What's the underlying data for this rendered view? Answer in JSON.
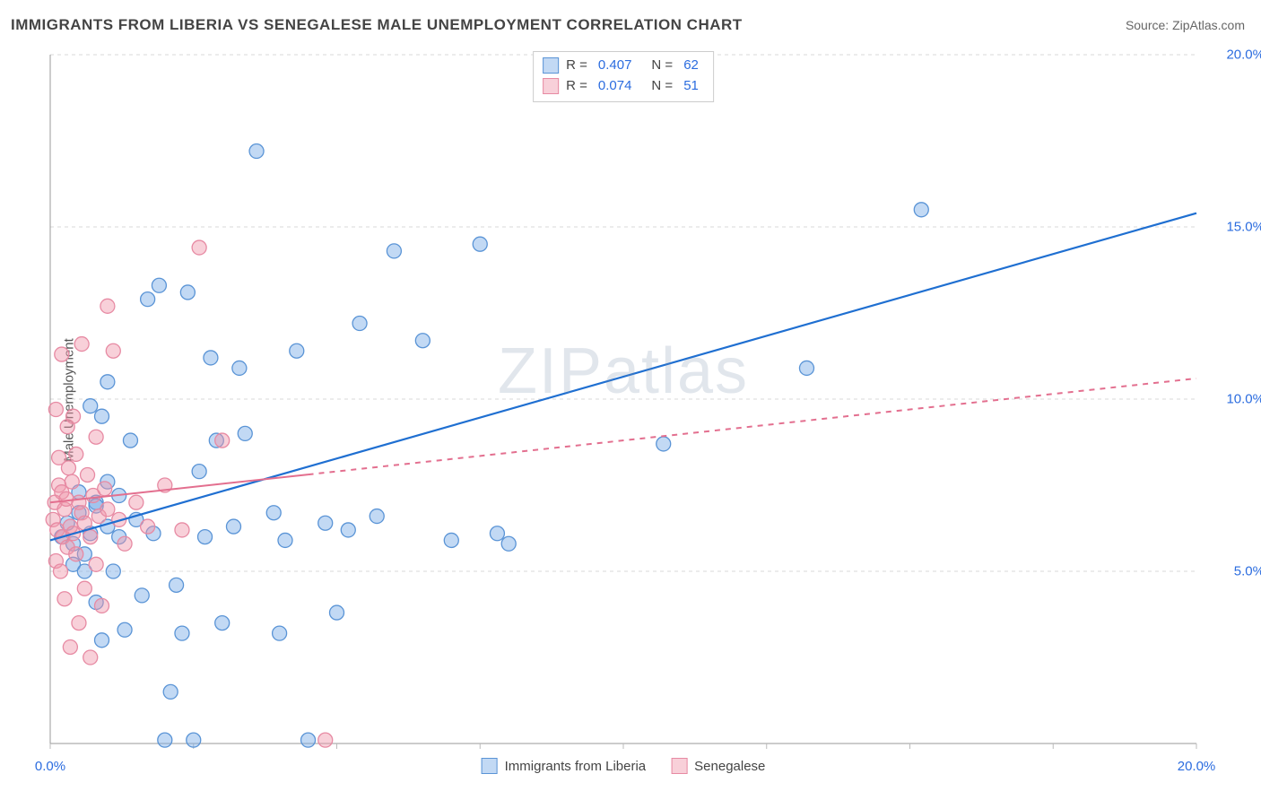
{
  "title": "IMMIGRANTS FROM LIBERIA VS SENEGALESE MALE UNEMPLOYMENT CORRELATION CHART",
  "source": "Source: ZipAtlas.com",
  "ylabel": "Male Unemployment",
  "watermark": "ZIPatlas",
  "chart": {
    "type": "scatter",
    "xlim": [
      0,
      20
    ],
    "ylim": [
      0,
      20
    ],
    "x_axis_label_low": "0.0%",
    "x_axis_label_high": "20.0%",
    "ytick_positions": [
      5,
      10,
      15,
      20
    ],
    "ytick_labels": [
      "5.0%",
      "10.0%",
      "15.0%",
      "20.0%"
    ],
    "xtick_positions": [
      0,
      2.5,
      5,
      7.5,
      10,
      12.5,
      15,
      17.5,
      20
    ],
    "grid_color": "#d9d9d9",
    "grid_dash": "4,4",
    "axis_color": "#999999",
    "tick_color": "#bbbbbb",
    "background_color": "#ffffff",
    "series": [
      {
        "name": "Immigrants from Liberia",
        "marker_color_fill": "rgba(120,170,230,0.45)",
        "marker_color_stroke": "#5a94d6",
        "marker_radius": 8,
        "trend_color": "#1f6fd1",
        "trend_width": 2.2,
        "trend_dash": "none",
        "trend_x_range": [
          0,
          20
        ],
        "trend_y_at_x0": 5.9,
        "trend_y_at_xmax": 15.4,
        "r": "0.407",
        "n": "62",
        "points": [
          [
            0.2,
            6.0
          ],
          [
            0.3,
            6.4
          ],
          [
            0.4,
            5.8
          ],
          [
            0.5,
            6.7
          ],
          [
            0.5,
            7.3
          ],
          [
            0.6,
            5.5
          ],
          [
            0.7,
            6.1
          ],
          [
            0.7,
            9.8
          ],
          [
            0.8,
            4.1
          ],
          [
            0.8,
            7.0
          ],
          [
            0.9,
            3.0
          ],
          [
            0.9,
            9.5
          ],
          [
            1.0,
            6.3
          ],
          [
            1.0,
            10.5
          ],
          [
            1.1,
            5.0
          ],
          [
            1.2,
            7.2
          ],
          [
            1.3,
            3.3
          ],
          [
            1.4,
            8.8
          ],
          [
            1.5,
            6.5
          ],
          [
            1.6,
            4.3
          ],
          [
            1.7,
            12.9
          ],
          [
            1.8,
            6.1
          ],
          [
            1.9,
            13.3
          ],
          [
            2.0,
            0.1
          ],
          [
            2.1,
            1.5
          ],
          [
            2.2,
            4.6
          ],
          [
            2.3,
            3.2
          ],
          [
            2.4,
            13.1
          ],
          [
            2.5,
            0.1
          ],
          [
            2.6,
            7.9
          ],
          [
            2.7,
            6.0
          ],
          [
            2.8,
            11.2
          ],
          [
            2.9,
            8.8
          ],
          [
            3.0,
            3.5
          ],
          [
            3.2,
            6.3
          ],
          [
            3.3,
            10.9
          ],
          [
            3.4,
            9.0
          ],
          [
            3.6,
            17.2
          ],
          [
            3.9,
            6.7
          ],
          [
            4.0,
            3.2
          ],
          [
            4.1,
            5.9
          ],
          [
            4.3,
            11.4
          ],
          [
            4.5,
            0.1
          ],
          [
            4.8,
            6.4
          ],
          [
            5.0,
            3.8
          ],
          [
            5.2,
            6.2
          ],
          [
            5.4,
            12.2
          ],
          [
            5.7,
            6.6
          ],
          [
            6.0,
            14.3
          ],
          [
            6.5,
            11.7
          ],
          [
            7.0,
            5.9
          ],
          [
            7.5,
            14.5
          ],
          [
            7.8,
            6.1
          ],
          [
            8.0,
            5.8
          ],
          [
            10.7,
            8.7
          ],
          [
            13.2,
            10.9
          ],
          [
            15.2,
            15.5
          ],
          [
            0.4,
            5.2
          ],
          [
            0.6,
            5.0
          ],
          [
            0.8,
            6.9
          ],
          [
            1.0,
            7.6
          ],
          [
            1.2,
            6.0
          ]
        ]
      },
      {
        "name": "Senegalese",
        "marker_color_fill": "rgba(240,150,170,0.45)",
        "marker_color_stroke": "#e78aa3",
        "marker_radius": 8,
        "trend_color": "#e36f8f",
        "trend_width": 2.0,
        "trend_dash_solid_until": 4.5,
        "trend_dash": "6,6",
        "trend_x_range": [
          0,
          20
        ],
        "trend_y_at_x0": 7.0,
        "trend_y_at_xmax": 10.6,
        "r": "0.074",
        "n": "51",
        "points": [
          [
            0.05,
            6.5
          ],
          [
            0.08,
            7.0
          ],
          [
            0.1,
            5.3
          ],
          [
            0.1,
            9.7
          ],
          [
            0.12,
            6.2
          ],
          [
            0.15,
            7.5
          ],
          [
            0.15,
            8.3
          ],
          [
            0.18,
            5.0
          ],
          [
            0.2,
            7.3
          ],
          [
            0.2,
            11.3
          ],
          [
            0.22,
            6.0
          ],
          [
            0.25,
            6.8
          ],
          [
            0.25,
            4.2
          ],
          [
            0.28,
            7.1
          ],
          [
            0.3,
            9.2
          ],
          [
            0.3,
            5.7
          ],
          [
            0.32,
            8.0
          ],
          [
            0.35,
            6.3
          ],
          [
            0.35,
            2.8
          ],
          [
            0.38,
            7.6
          ],
          [
            0.4,
            6.1
          ],
          [
            0.4,
            9.5
          ],
          [
            0.45,
            5.5
          ],
          [
            0.45,
            8.4
          ],
          [
            0.5,
            7.0
          ],
          [
            0.5,
            3.5
          ],
          [
            0.55,
            6.7
          ],
          [
            0.55,
            11.6
          ],
          [
            0.6,
            6.4
          ],
          [
            0.6,
            4.5
          ],
          [
            0.65,
            7.8
          ],
          [
            0.7,
            6.0
          ],
          [
            0.7,
            2.5
          ],
          [
            0.75,
            7.2
          ],
          [
            0.8,
            8.9
          ],
          [
            0.8,
            5.2
          ],
          [
            0.85,
            6.6
          ],
          [
            0.9,
            4.0
          ],
          [
            0.95,
            7.4
          ],
          [
            1.0,
            6.8
          ],
          [
            1.0,
            12.7
          ],
          [
            1.1,
            11.4
          ],
          [
            1.2,
            6.5
          ],
          [
            1.3,
            5.8
          ],
          [
            1.5,
            7.0
          ],
          [
            1.7,
            6.3
          ],
          [
            2.0,
            7.5
          ],
          [
            2.3,
            6.2
          ],
          [
            2.6,
            14.4
          ],
          [
            3.0,
            8.8
          ],
          [
            4.8,
            0.1
          ]
        ]
      }
    ],
    "top_legend": {
      "rows": [
        {
          "swatch_fill": "rgba(120,170,230,0.45)",
          "swatch_stroke": "#5a94d6",
          "r_label": "R = ",
          "r": "0.407",
          "n_label": "N = ",
          "n": "62"
        },
        {
          "swatch_fill": "rgba(240,150,170,0.45)",
          "swatch_stroke": "#e78aa3",
          "r_label": "R = ",
          "r": "0.074",
          "n_label": "N = ",
          "n": "51"
        }
      ]
    },
    "bottom_legend": [
      {
        "swatch_fill": "rgba(120,170,230,0.45)",
        "swatch_stroke": "#5a94d6",
        "label": "Immigrants from Liberia"
      },
      {
        "swatch_fill": "rgba(240,150,170,0.45)",
        "swatch_stroke": "#e78aa3",
        "label": "Senegalese"
      }
    ]
  }
}
